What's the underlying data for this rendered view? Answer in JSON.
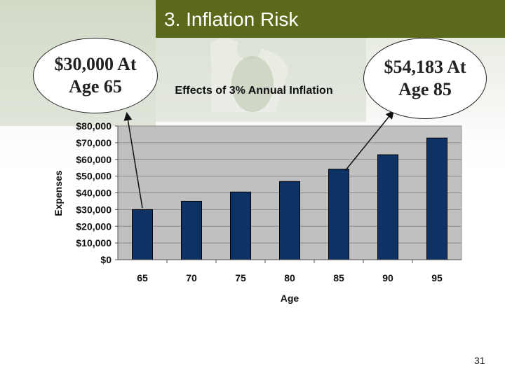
{
  "slide": {
    "title": "3. Inflation Risk",
    "number": "31"
  },
  "callouts": {
    "left": "$30,000 At\nAge 65",
    "right": "$54,183 At\nAge 85"
  },
  "colors": {
    "title_bar": "#5b6a1a",
    "bar_fill": "#0d3366",
    "plot_bg": "#c0c0c0"
  },
  "chart_data": {
    "type": "bar",
    "title": "Effects of 3% Annual Inflation",
    "xlabel": "Age",
    "ylabel": "Expenses",
    "categories": [
      "65",
      "70",
      "75",
      "80",
      "85",
      "90",
      "95"
    ],
    "values": [
      30000,
      35000,
      40500,
      46800,
      54183,
      62800,
      72800
    ],
    "ylim": [
      0,
      80000
    ],
    "yticks": [
      0,
      10000,
      20000,
      30000,
      40000,
      50000,
      60000,
      70000,
      80000
    ],
    "ytick_labels": [
      "$0",
      "$10,000",
      "$20,000",
      "$30,000",
      "$40,000",
      "$50,000",
      "$60,000",
      "$70,000",
      "$80,000"
    ],
    "grid": true,
    "legend": "none"
  }
}
